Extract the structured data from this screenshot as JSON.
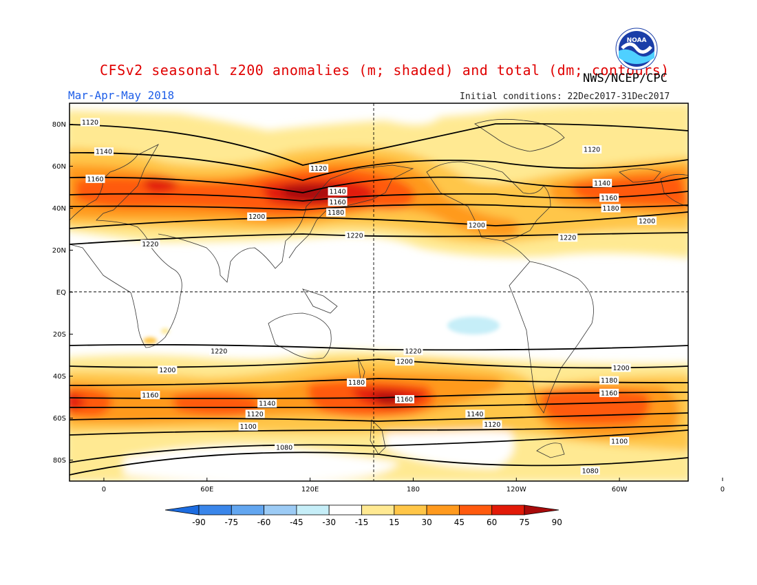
{
  "header": {
    "title": "CFSv2 seasonal z200 anomalies (m; shaded) and total (dm; contours)",
    "agency": "NWS/NCEP/CPC",
    "season": "Mar-Apr-May 2018",
    "initial_conditions": "Initial conditions: 22Dec2017-31Dec2017",
    "logo_text": "NOAA"
  },
  "axes": {
    "lat_ticks": [
      "80N",
      "60N",
      "40N",
      "20N",
      "EQ",
      "20S",
      "40S",
      "60S",
      "80S"
    ],
    "lon_ticks": [
      "0",
      "60E",
      "120E",
      "180",
      "120W",
      "60W",
      "0"
    ]
  },
  "contour_labels": [
    {
      "text": "1120",
      "lon": -8,
      "lat": 81
    },
    {
      "text": "1140",
      "lon": 0,
      "lat": 67
    },
    {
      "text": "1160",
      "lon": -5,
      "lat": 54
    },
    {
      "text": "1120",
      "lon": 125,
      "lat": 59
    },
    {
      "text": "1140",
      "lon": 136,
      "lat": 48
    },
    {
      "text": "1160",
      "lon": 136,
      "lat": 43
    },
    {
      "text": "1180",
      "lon": 135,
      "lat": 38
    },
    {
      "text": "1200",
      "lon": 89,
      "lat": 36
    },
    {
      "text": "1220",
      "lon": 27,
      "lat": 23
    },
    {
      "text": "1220",
      "lon": 146,
      "lat": 27
    },
    {
      "text": "1200",
      "lon": 217,
      "lat": 32
    },
    {
      "text": "1120",
      "lon": 284,
      "lat": 68
    },
    {
      "text": "1140",
      "lon": 290,
      "lat": 52
    },
    {
      "text": "1160",
      "lon": 294,
      "lat": 45
    },
    {
      "text": "1180",
      "lon": 295,
      "lat": 40
    },
    {
      "text": "1220",
      "lon": 270,
      "lat": 26
    },
    {
      "text": "1200",
      "lon": 316,
      "lat": 34
    },
    {
      "text": "1220",
      "lon": 67,
      "lat": -28
    },
    {
      "text": "1200",
      "lon": 37,
      "lat": -37
    },
    {
      "text": "1220",
      "lon": 180,
      "lat": -28
    },
    {
      "text": "1200",
      "lon": 175,
      "lat": -33
    },
    {
      "text": "1180",
      "lon": 147,
      "lat": -43
    },
    {
      "text": "1160",
      "lon": 27,
      "lat": -49
    },
    {
      "text": "1140",
      "lon": 95,
      "lat": -53
    },
    {
      "text": "1120",
      "lon": 88,
      "lat": -58
    },
    {
      "text": "1100",
      "lon": 84,
      "lat": -64
    },
    {
      "text": "1080",
      "lon": 105,
      "lat": -74
    },
    {
      "text": "1160",
      "lon": 175,
      "lat": -51
    },
    {
      "text": "1140",
      "lon": 216,
      "lat": -58
    },
    {
      "text": "1120",
      "lon": 226,
      "lat": -63
    },
    {
      "text": "1180",
      "lon": 294,
      "lat": -42
    },
    {
      "text": "1160",
      "lon": 294,
      "lat": -48
    },
    {
      "text": "1200",
      "lon": 301,
      "lat": -36
    },
    {
      "text": "1100",
      "lon": 300,
      "lat": -71
    },
    {
      "text": "1080",
      "lon": 283,
      "lat": -85
    }
  ],
  "colorbar": {
    "labels": [
      "-90",
      "-75",
      "-60",
      "-45",
      "-30",
      "-15",
      "15",
      "30",
      "45",
      "60",
      "75",
      "90"
    ],
    "colors": [
      "#1c6ce0",
      "#3a86ea",
      "#62a6f0",
      "#9ccbf5",
      "#c6eef8",
      "#ffffff",
      "#ffe992",
      "#ffc648",
      "#ff9a1e",
      "#ff5a0e",
      "#e21a08",
      "#a80a0a"
    ]
  }
}
